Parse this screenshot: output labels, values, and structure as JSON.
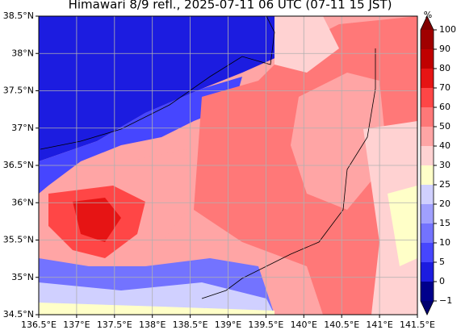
{
  "chart_data": {
    "type": "map",
    "title": "Himawari 8/9 refl., 2025-07-11 06 UTC (07-11 15 JST)",
    "xlim": [
      136.5,
      141.5
    ],
    "xticks": [
      {
        "value": 136.5,
        "label": "136.5°E"
      },
      {
        "value": 137,
        "label": "137°E"
      },
      {
        "value": 137.5,
        "label": "137.5°E"
      },
      {
        "value": 138,
        "label": "138°E"
      },
      {
        "value": 138.5,
        "label": "138.5°E"
      },
      {
        "value": 139,
        "label": "139°E"
      },
      {
        "value": 139.5,
        "label": "139.5°E"
      },
      {
        "value": 140,
        "label": "140°E"
      },
      {
        "value": 140.5,
        "label": "140.5°E"
      },
      {
        "value": 141,
        "label": "141°E"
      },
      {
        "value": 141.5,
        "label": "141.5°E"
      }
    ],
    "ylim": [
      34.5,
      38.5
    ],
    "yticks": [
      {
        "value": 34.5,
        "label": "34.5°N"
      },
      {
        "value": 35,
        "label": "35°N"
      },
      {
        "value": 35.5,
        "label": "35.5°N"
      },
      {
        "value": 36,
        "label": "36°N"
      },
      {
        "value": 36.5,
        "label": "36.5°N"
      },
      {
        "value": 37,
        "label": "37°N"
      },
      {
        "value": 37.5,
        "label": "37.5°N"
      },
      {
        "value": 38,
        "label": "38°N"
      },
      {
        "value": 38.5,
        "label": "38.5°N"
      }
    ],
    "grid": true,
    "colorbar": {
      "label": "%",
      "ticks": [
        {
          "value": -1,
          "label": "−1"
        },
        0,
        5,
        10,
        15,
        20,
        25,
        30,
        40,
        50,
        60,
        70,
        80,
        90,
        100
      ],
      "colors": [
        "#00008b",
        "#1c1ce0",
        "#4646ff",
        "#7373ff",
        "#a0a0ff",
        "#d0d0ff",
        "#ffffc8",
        "#ffd2d2",
        "#ffa5a5",
        "#ff7878",
        "#ff4646",
        "#e61414",
        "#c00000",
        "#a00000"
      ],
      "under_color": "#000070",
      "over_color": "#800000"
    }
  }
}
